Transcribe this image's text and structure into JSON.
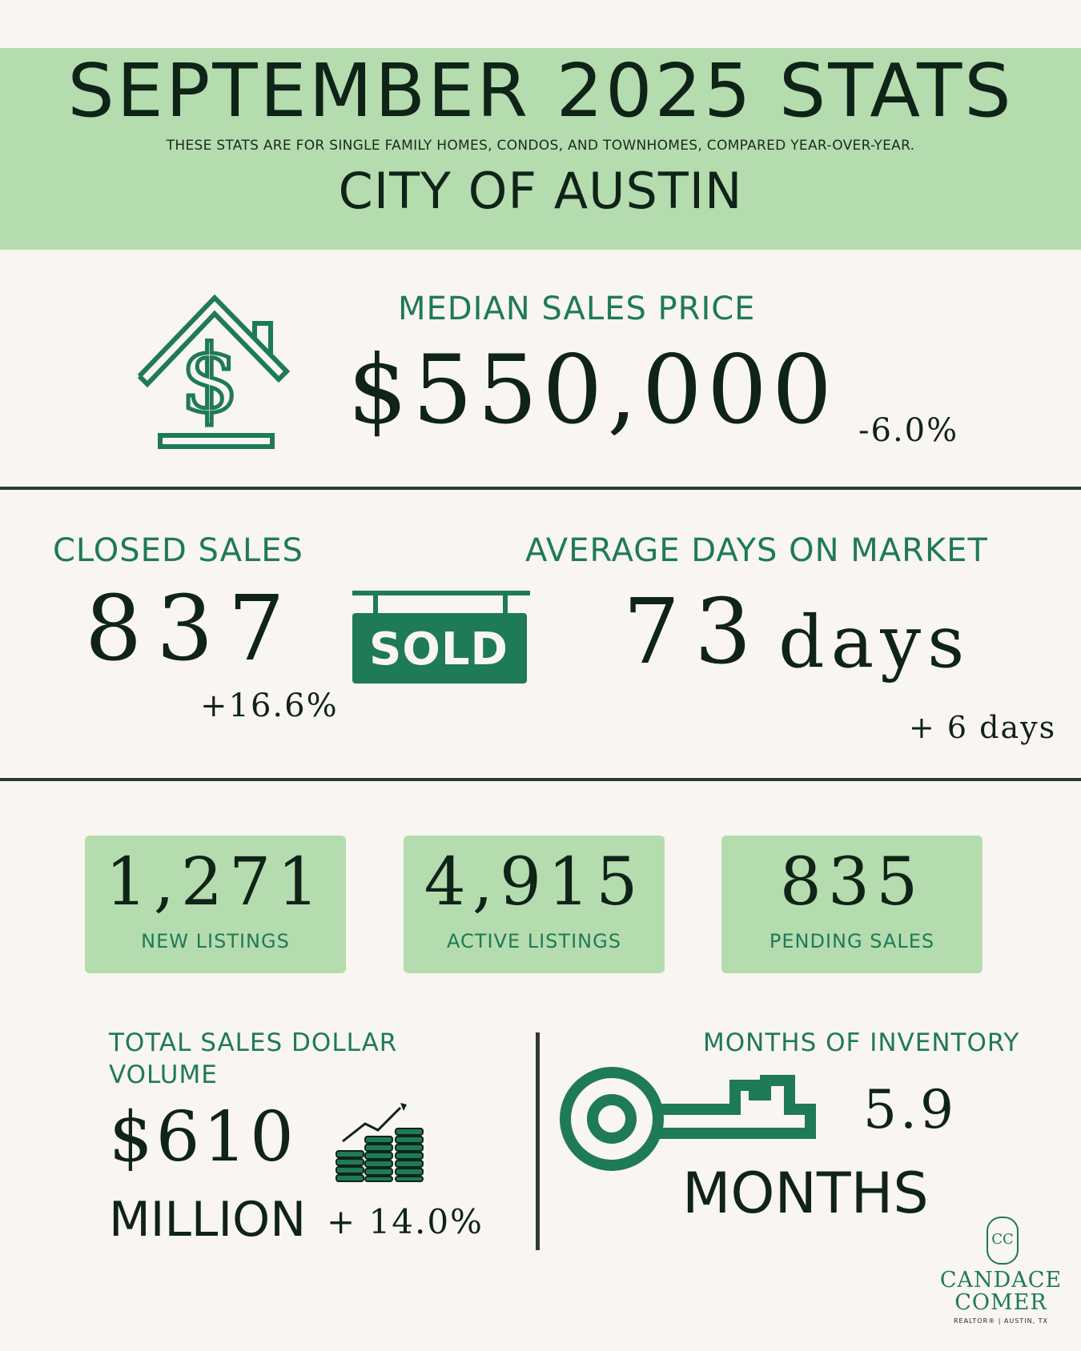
{
  "header": {
    "title": "SEPTEMBER 2025 STATS",
    "subtitle": "THESE STATS ARE FOR SINGLE FAMILY HOMES, CONDOS, AND TOWNHOMES, COMPARED YEAR-OVER-YEAR.",
    "city": "CITY OF AUSTIN"
  },
  "median_price": {
    "label": "MEDIAN SALES PRICE",
    "value": "$550,000",
    "change": "-6.0%",
    "icon": "house-dollar-icon"
  },
  "closed_sales": {
    "label": "CLOSED SALES",
    "value": "837",
    "change": "+16.6%"
  },
  "sold_sign": {
    "text": "SOLD",
    "icon": "sold-sign-icon"
  },
  "days_on_market": {
    "label": "AVERAGE DAYS ON MARKET",
    "value": "73",
    "unit": "days",
    "change": "+ 6 days"
  },
  "cards": [
    {
      "value": "1,271",
      "label": "NEW LISTINGS"
    },
    {
      "value": "4,915",
      "label": "ACTIVE LISTINGS"
    },
    {
      "value": "835",
      "label": "PENDING SALES"
    }
  ],
  "volume": {
    "label_line1": "TOTAL SALES DOLLAR",
    "label_line2": "VOLUME",
    "value": "$610",
    "unit": "MILLION",
    "change": "+ 14.0%",
    "icon": "coin-stacks-growth-icon"
  },
  "inventory": {
    "label": "MONTHS OF INVENTORY",
    "value": "5.9",
    "unit": "MONTHS",
    "icon": "key-icon"
  },
  "brand": {
    "monogram": "CC",
    "name_line1": "CANDACE",
    "name_line2": "COMER",
    "tagline": "REALTOR® | AUSTIN, TX"
  },
  "colors": {
    "background": "#f9f5f0",
    "header_green": "#b5dcae",
    "accent_green": "#1e7a57",
    "dark_text": "#0f2318"
  }
}
